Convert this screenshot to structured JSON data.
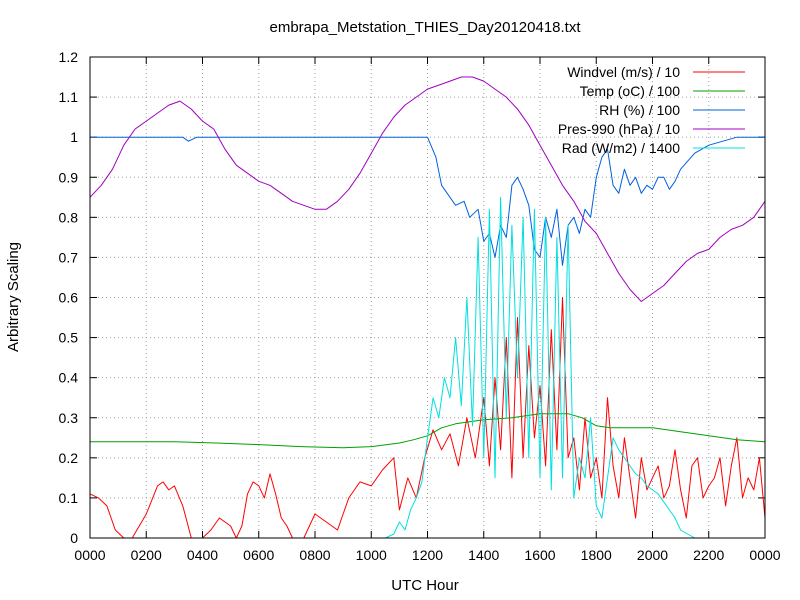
{
  "chart_data": {
    "type": "line",
    "title": "embrapa_Metstation_THIES_Day20120418.txt",
    "xlabel": "UTC Hour",
    "ylabel": "Arbitrary Scaling",
    "xlim": [
      0,
      2400
    ],
    "ylim": [
      0,
      1.2
    ],
    "x_ticks": [
      "0000",
      "0200",
      "0400",
      "0600",
      "0800",
      "1000",
      "1200",
      "1400",
      "1600",
      "1800",
      "2000",
      "2200",
      "0000"
    ],
    "y_ticks": [
      "0",
      "0.1",
      "0.2",
      "0.3",
      "0.4",
      "0.5",
      "0.6",
      "0.7",
      "0.8",
      "0.9",
      "1",
      "1.1",
      "1.2"
    ],
    "grid": true,
    "legend_position": "top-right",
    "series": [
      {
        "name": "Windvel (m/s) / 10",
        "color": "#ff0000",
        "x": [
          0,
          30,
          60,
          90,
          120,
          150,
          200,
          240,
          260,
          280,
          300,
          330,
          360,
          400,
          430,
          460,
          500,
          520,
          540,
          560,
          580,
          600,
          620,
          640,
          660,
          680,
          700,
          720,
          760,
          800,
          840,
          880,
          920,
          960,
          1000,
          1040,
          1080,
          1100,
          1130,
          1160,
          1190,
          1220,
          1250,
          1280,
          1310,
          1340,
          1370,
          1400,
          1420,
          1440,
          1460,
          1480,
          1500,
          1520,
          1540,
          1560,
          1580,
          1600,
          1620,
          1640,
          1660,
          1680,
          1700,
          1720,
          1740,
          1760,
          1780,
          1800,
          1820,
          1840,
          1860,
          1880,
          1900,
          1920,
          1940,
          1960,
          1980,
          2000,
          2020,
          2040,
          2060,
          2080,
          2100,
          2120,
          2140,
          2160,
          2180,
          2200,
          2220,
          2240,
          2260,
          2280,
          2300,
          2320,
          2340,
          2360,
          2380,
          2400
        ],
        "y": [
          0.11,
          0.1,
          0.08,
          0.02,
          0,
          0,
          0.06,
          0.13,
          0.14,
          0.12,
          0.13,
          0.08,
          0,
          0,
          0.02,
          0.05,
          0.03,
          0,
          0.03,
          0.11,
          0.14,
          0.13,
          0.1,
          0.16,
          0.11,
          0.05,
          0.03,
          0,
          0,
          0.06,
          0.04,
          0.02,
          0.1,
          0.14,
          0.13,
          0.17,
          0.2,
          0.07,
          0.15,
          0.1,
          0.2,
          0.27,
          0.22,
          0.26,
          0.18,
          0.3,
          0.2,
          0.35,
          0.18,
          0.4,
          0.22,
          0.5,
          0.15,
          0.55,
          0.2,
          0.48,
          0.25,
          0.38,
          0.18,
          0.52,
          0.22,
          0.6,
          0.2,
          0.25,
          0.12,
          0.3,
          0.15,
          0.2,
          0.1,
          0.35,
          0.18,
          0.1,
          0.25,
          0.15,
          0.05,
          0.2,
          0.12,
          0.15,
          0.18,
          0.1,
          0.13,
          0.22,
          0.12,
          0.05,
          0.18,
          0.2,
          0.1,
          0.13,
          0.15,
          0.2,
          0.08,
          0.18,
          0.25,
          0.1,
          0.15,
          0.12,
          0.2,
          0.05
        ]
      },
      {
        "name": "Temp (oC) / 100",
        "color": "#00a000",
        "x": [
          0,
          150,
          300,
          450,
          600,
          750,
          900,
          1000,
          1100,
          1150,
          1200,
          1250,
          1300,
          1400,
          1500,
          1550,
          1600,
          1650,
          1700,
          1750,
          1800,
          1850,
          1900,
          2000,
          2100,
          2200,
          2300,
          2400
        ],
        "y": [
          0.24,
          0.24,
          0.24,
          0.237,
          0.233,
          0.228,
          0.225,
          0.228,
          0.237,
          0.245,
          0.255,
          0.275,
          0.285,
          0.295,
          0.3,
          0.305,
          0.31,
          0.31,
          0.31,
          0.3,
          0.28,
          0.275,
          0.275,
          0.275,
          0.265,
          0.255,
          0.245,
          0.24
        ]
      },
      {
        "name": "RH (%) / 100",
        "color": "#0060e0",
        "x": [
          0,
          300,
          330,
          350,
          380,
          420,
          600,
          900,
          1200,
          1230,
          1250,
          1280,
          1300,
          1330,
          1350,
          1380,
          1400,
          1420,
          1440,
          1460,
          1480,
          1500,
          1520,
          1540,
          1560,
          1580,
          1600,
          1620,
          1640,
          1660,
          1680,
          1700,
          1720,
          1740,
          1760,
          1780,
          1800,
          1820,
          1840,
          1860,
          1880,
          1900,
          1920,
          1940,
          1960,
          1980,
          2000,
          2020,
          2040,
          2060,
          2080,
          2100,
          2150,
          2200,
          2250,
          2300,
          2400
        ],
        "y": [
          1.0,
          1.0,
          1.0,
          0.99,
          1.0,
          1.0,
          1.0,
          1.0,
          1.0,
          0.95,
          0.88,
          0.85,
          0.83,
          0.84,
          0.8,
          0.82,
          0.74,
          0.76,
          0.7,
          0.78,
          0.75,
          0.88,
          0.9,
          0.87,
          0.83,
          0.72,
          0.7,
          0.8,
          0.75,
          0.82,
          0.68,
          0.78,
          0.8,
          0.76,
          0.82,
          0.8,
          0.9,
          0.95,
          0.97,
          0.88,
          0.86,
          0.92,
          0.88,
          0.9,
          0.86,
          0.88,
          0.87,
          0.9,
          0.9,
          0.87,
          0.89,
          0.92,
          0.96,
          0.98,
          0.99,
          1.0,
          1.0
        ]
      },
      {
        "name": "Pres-990 (hPa) / 10",
        "color": "#a000c0",
        "x": [
          0,
          40,
          80,
          120,
          160,
          200,
          240,
          280,
          320,
          360,
          400,
          440,
          480,
          520,
          560,
          600,
          640,
          680,
          720,
          760,
          800,
          840,
          880,
          920,
          960,
          1000,
          1040,
          1080,
          1120,
          1160,
          1200,
          1240,
          1280,
          1320,
          1360,
          1400,
          1440,
          1480,
          1520,
          1560,
          1600,
          1640,
          1680,
          1720,
          1760,
          1800,
          1840,
          1880,
          1920,
          1960,
          2000,
          2040,
          2080,
          2120,
          2160,
          2200,
          2240,
          2280,
          2320,
          2360,
          2400
        ],
        "y": [
          0.85,
          0.88,
          0.92,
          0.98,
          1.02,
          1.04,
          1.06,
          1.08,
          1.09,
          1.07,
          1.04,
          1.02,
          0.97,
          0.93,
          0.91,
          0.89,
          0.88,
          0.86,
          0.84,
          0.83,
          0.82,
          0.82,
          0.84,
          0.87,
          0.91,
          0.96,
          1.01,
          1.05,
          1.08,
          1.1,
          1.12,
          1.13,
          1.14,
          1.15,
          1.15,
          1.14,
          1.12,
          1.1,
          1.07,
          1.03,
          0.98,
          0.93,
          0.88,
          0.84,
          0.79,
          0.76,
          0.71,
          0.66,
          0.62,
          0.59,
          0.61,
          0.63,
          0.66,
          0.69,
          0.71,
          0.72,
          0.75,
          0.77,
          0.78,
          0.8,
          0.84
        ]
      },
      {
        "name": "Rad (W/m2) / 1400",
        "color": "#00e0e0",
        "x": [
          0,
          1050,
          1080,
          1100,
          1120,
          1140,
          1160,
          1180,
          1200,
          1220,
          1240,
          1260,
          1280,
          1300,
          1320,
          1340,
          1360,
          1380,
          1400,
          1420,
          1440,
          1460,
          1480,
          1500,
          1520,
          1540,
          1560,
          1580,
          1600,
          1620,
          1640,
          1660,
          1680,
          1700,
          1720,
          1740,
          1760,
          1780,
          1800,
          1820,
          1840,
          1860,
          1880,
          1900,
          1920,
          1940,
          1960,
          1980,
          2000,
          2020,
          2040,
          2060,
          2080,
          2100,
          2150,
          2400
        ],
        "y": [
          0,
          0,
          0.01,
          0.04,
          0.02,
          0.07,
          0.1,
          0.14,
          0.25,
          0.35,
          0.3,
          0.4,
          0.35,
          0.5,
          0.33,
          0.6,
          0.28,
          0.75,
          0.2,
          0.82,
          0.15,
          0.85,
          0.3,
          0.78,
          0.4,
          0.8,
          0.2,
          0.82,
          0.15,
          0.8,
          0.12,
          0.75,
          0.15,
          0.78,
          0.1,
          0.2,
          0.15,
          0.3,
          0.08,
          0.05,
          0.15,
          0.25,
          0.22,
          0.2,
          0.18,
          0.16,
          0.15,
          0.13,
          0.12,
          0.11,
          0.09,
          0.07,
          0.05,
          0.02,
          0,
          0
        ]
      }
    ]
  }
}
